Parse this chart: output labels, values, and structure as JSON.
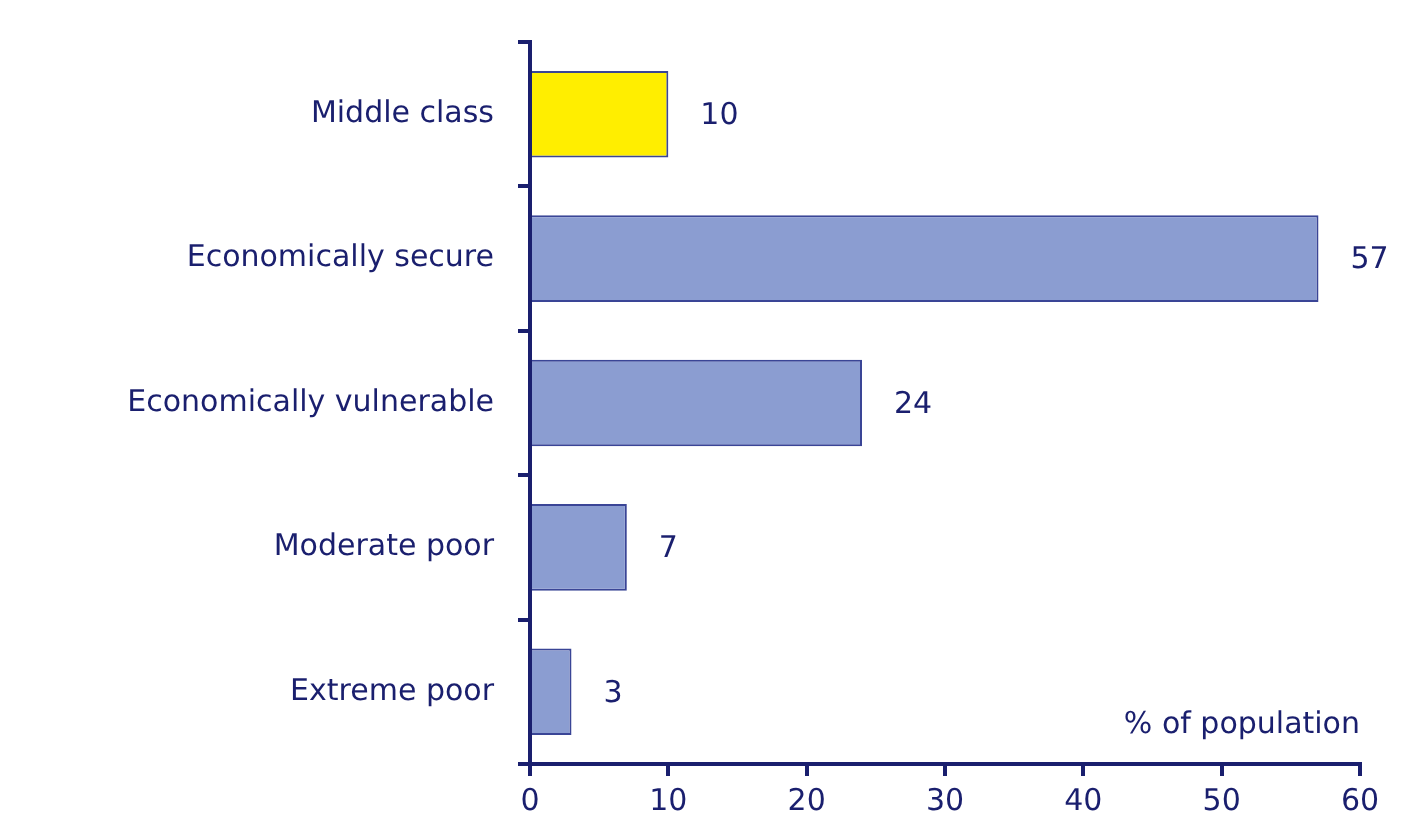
{
  "chart_data": {
    "type": "bar",
    "orientation": "horizontal",
    "xlabel": "% of population",
    "categories": [
      "Middle class",
      "Economically secure",
      "Economically vulnerable",
      "Moderate poor",
      "Extreme poor"
    ],
    "values": [
      10,
      57,
      24,
      7,
      3
    ],
    "colors": [
      "#ffee00",
      "#8b9dd1",
      "#8b9dd1",
      "#8b9dd1",
      "#8b9dd1"
    ],
    "xlim": [
      0,
      60
    ],
    "xticks": [
      0,
      10,
      20,
      30,
      40,
      50,
      60
    ],
    "data_labels": true
  }
}
